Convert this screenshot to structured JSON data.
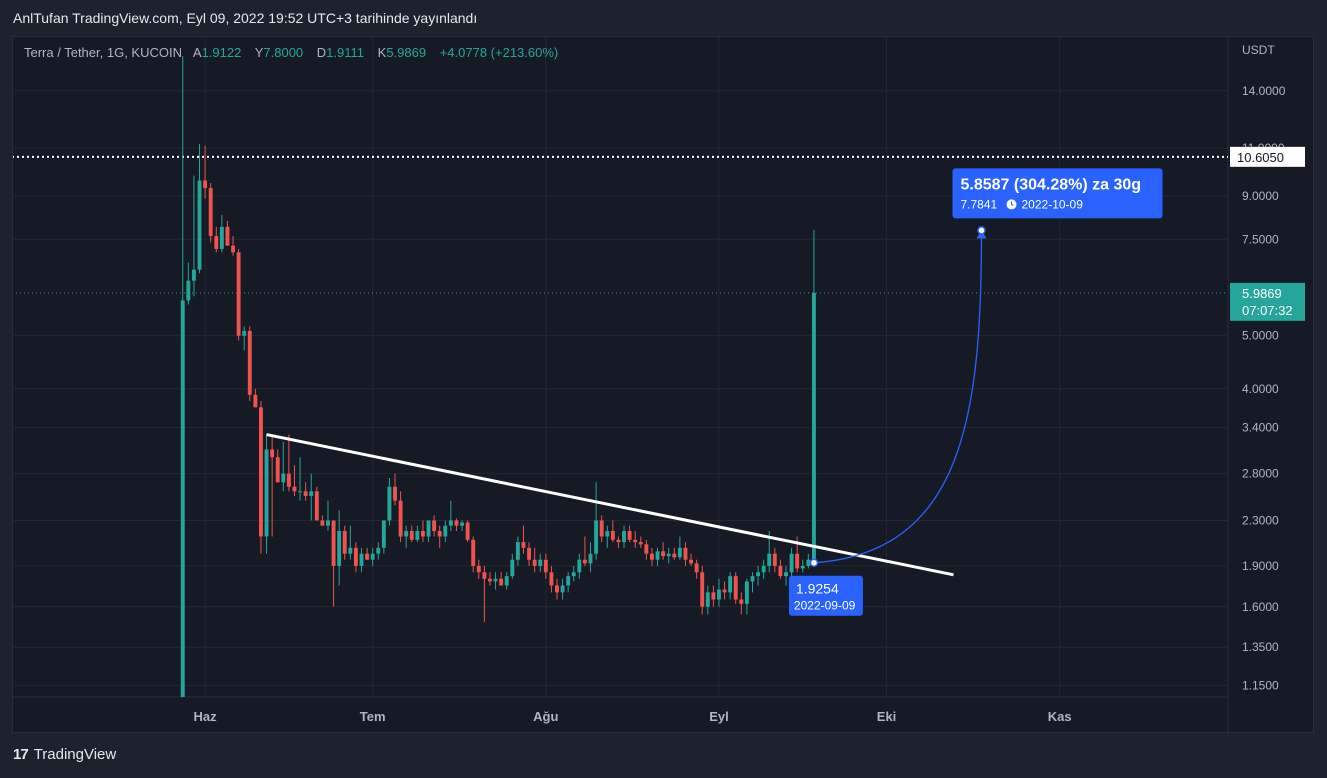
{
  "caption": "AnlTufan TradingView.com, Eyl 09, 2022 19:52 UTC+3 tarihinde yayınlandı",
  "legend": {
    "symbol": "Terra / Tether, 1G, KUCOIN",
    "o_label": "A",
    "o_value": "1.9122",
    "h_label": "Y",
    "h_value": "7.8000",
    "l_label": "D",
    "l_value": "1.9111",
    "c_label": "K",
    "c_value": "5.9869",
    "change": "+4.0778 (+213.60%)"
  },
  "currency": "USDT",
  "brand": {
    "logo": "17",
    "name": "TradingView"
  },
  "colors": {
    "up": "#26a69a",
    "down": "#ef5350",
    "accent": "#2962ff",
    "grid": "#232733",
    "text": "#b2b5be"
  },
  "chart_data": {
    "type": "candlestick",
    "scale": "log",
    "ylim": [
      1.05,
      16.0
    ],
    "y_ticks": [
      "14.0000",
      "9.0000",
      "7.5000",
      "5.0000",
      "4.0000",
      "3.4000",
      "2.8000",
      "2.3000",
      "1.9000",
      "1.6000",
      "1.3500",
      "1.1500"
    ],
    "hidden_tick": "11.0000",
    "x_axis": {
      "start": "2022-05-25",
      "end": "2022-11-22",
      "month_ticks": [
        {
          "label": "Haz",
          "date": "2022-06-01"
        },
        {
          "label": "Tem",
          "date": "2022-07-01"
        },
        {
          "label": "Ağu",
          "date": "2022-08-01"
        },
        {
          "label": "Eyl",
          "date": "2022-09-01"
        },
        {
          "label": "Eki",
          "date": "2022-10-01"
        },
        {
          "label": "Kas",
          "date": "2022-11-01"
        }
      ]
    },
    "candles": [
      {
        "d": "2022-05-28",
        "o": 1.08,
        "h": 16.2,
        "l": 1.07,
        "c": 5.8
      },
      {
        "d": "2022-05-29",
        "o": 5.8,
        "h": 6.8,
        "l": 5.7,
        "c": 6.3
      },
      {
        "d": "2022-05-30",
        "o": 6.3,
        "h": 9.8,
        "l": 5.9,
        "c": 6.6
      },
      {
        "d": "2022-05-31",
        "o": 6.6,
        "h": 11.2,
        "l": 6.5,
        "c": 9.6
      },
      {
        "d": "2022-06-01",
        "o": 9.6,
        "h": 11.1,
        "l": 8.9,
        "c": 9.3
      },
      {
        "d": "2022-06-02",
        "o": 9.3,
        "h": 9.5,
        "l": 7.4,
        "c": 7.6
      },
      {
        "d": "2022-06-03",
        "o": 7.6,
        "h": 7.9,
        "l": 7.1,
        "c": 7.2
      },
      {
        "d": "2022-06-04",
        "o": 7.2,
        "h": 8.3,
        "l": 7.1,
        "c": 7.9
      },
      {
        "d": "2022-06-05",
        "o": 7.9,
        "h": 8.1,
        "l": 7.3,
        "c": 7.3
      },
      {
        "d": "2022-06-06",
        "o": 7.3,
        "h": 7.6,
        "l": 7.0,
        "c": 7.1
      },
      {
        "d": "2022-06-07",
        "o": 7.1,
        "h": 7.2,
        "l": 4.9,
        "c": 5.0
      },
      {
        "d": "2022-06-08",
        "o": 5.0,
        "h": 5.2,
        "l": 4.7,
        "c": 5.1
      },
      {
        "d": "2022-06-09",
        "o": 5.1,
        "h": 5.2,
        "l": 3.8,
        "c": 3.9
      },
      {
        "d": "2022-06-10",
        "o": 3.9,
        "h": 4.0,
        "l": 3.7,
        "c": 3.7
      },
      {
        "d": "2022-06-11",
        "o": 3.7,
        "h": 3.8,
        "l": 2.0,
        "c": 2.15
      },
      {
        "d": "2022-06-12",
        "o": 2.15,
        "h": 3.3,
        "l": 2.0,
        "c": 3.1
      },
      {
        "d": "2022-06-13",
        "o": 3.1,
        "h": 3.3,
        "l": 2.15,
        "c": 3.0
      },
      {
        "d": "2022-06-14",
        "o": 3.0,
        "h": 3.1,
        "l": 2.7,
        "c": 2.7
      },
      {
        "d": "2022-06-15",
        "o": 2.7,
        "h": 3.2,
        "l": 2.6,
        "c": 2.8
      },
      {
        "d": "2022-06-16",
        "o": 2.8,
        "h": 3.3,
        "l": 2.6,
        "c": 2.65
      },
      {
        "d": "2022-06-17",
        "o": 2.65,
        "h": 2.9,
        "l": 2.55,
        "c": 2.6
      },
      {
        "d": "2022-06-18",
        "o": 2.6,
        "h": 3.0,
        "l": 2.5,
        "c": 2.6
      },
      {
        "d": "2022-06-19",
        "o": 2.6,
        "h": 2.7,
        "l": 2.5,
        "c": 2.55
      },
      {
        "d": "2022-06-20",
        "o": 2.55,
        "h": 2.8,
        "l": 2.3,
        "c": 2.6
      },
      {
        "d": "2022-06-21",
        "o": 2.6,
        "h": 2.65,
        "l": 2.3,
        "c": 2.3
      },
      {
        "d": "2022-06-22",
        "o": 2.3,
        "h": 2.35,
        "l": 2.25,
        "c": 2.25
      },
      {
        "d": "2022-06-23",
        "o": 2.25,
        "h": 2.5,
        "l": 2.2,
        "c": 2.3
      },
      {
        "d": "2022-06-24",
        "o": 2.3,
        "h": 2.3,
        "l": 1.6,
        "c": 1.9
      },
      {
        "d": "2022-06-25",
        "o": 1.9,
        "h": 2.4,
        "l": 1.75,
        "c": 2.2
      },
      {
        "d": "2022-06-26",
        "o": 2.2,
        "h": 2.25,
        "l": 1.95,
        "c": 2.0
      },
      {
        "d": "2022-06-27",
        "o": 2.0,
        "h": 2.25,
        "l": 1.95,
        "c": 2.05
      },
      {
        "d": "2022-06-28",
        "o": 2.05,
        "h": 2.1,
        "l": 1.85,
        "c": 1.9
      },
      {
        "d": "2022-06-29",
        "o": 1.9,
        "h": 2.05,
        "l": 1.85,
        "c": 2.0
      },
      {
        "d": "2022-06-30",
        "o": 2.0,
        "h": 2.05,
        "l": 1.95,
        "c": 1.95
      },
      {
        "d": "2022-07-01",
        "o": 1.95,
        "h": 2.05,
        "l": 1.9,
        "c": 2.0
      },
      {
        "d": "2022-07-02",
        "o": 2.0,
        "h": 2.1,
        "l": 1.95,
        "c": 2.05
      },
      {
        "d": "2022-07-03",
        "o": 2.05,
        "h": 2.3,
        "l": 2.0,
        "c": 2.3
      },
      {
        "d": "2022-07-04",
        "o": 2.3,
        "h": 2.75,
        "l": 2.25,
        "c": 2.65
      },
      {
        "d": "2022-07-05",
        "o": 2.65,
        "h": 2.8,
        "l": 2.45,
        "c": 2.5
      },
      {
        "d": "2022-07-06",
        "o": 2.5,
        "h": 2.6,
        "l": 2.1,
        "c": 2.15
      },
      {
        "d": "2022-07-07",
        "o": 2.15,
        "h": 2.25,
        "l": 2.05,
        "c": 2.2
      },
      {
        "d": "2022-07-08",
        "o": 2.2,
        "h": 2.25,
        "l": 2.1,
        "c": 2.12
      },
      {
        "d": "2022-07-09",
        "o": 2.12,
        "h": 2.25,
        "l": 2.1,
        "c": 2.2
      },
      {
        "d": "2022-07-10",
        "o": 2.2,
        "h": 2.3,
        "l": 2.1,
        "c": 2.15
      },
      {
        "d": "2022-07-11",
        "o": 2.15,
        "h": 2.3,
        "l": 2.1,
        "c": 2.3
      },
      {
        "d": "2022-07-12",
        "o": 2.3,
        "h": 2.35,
        "l": 2.15,
        "c": 2.2
      },
      {
        "d": "2022-07-13",
        "o": 2.2,
        "h": 2.25,
        "l": 2.05,
        "c": 2.15
      },
      {
        "d": "2022-07-14",
        "o": 2.15,
        "h": 2.3,
        "l": 2.1,
        "c": 2.25
      },
      {
        "d": "2022-07-15",
        "o": 2.25,
        "h": 2.5,
        "l": 2.2,
        "c": 2.3
      },
      {
        "d": "2022-07-16",
        "o": 2.3,
        "h": 2.32,
        "l": 2.2,
        "c": 2.25
      },
      {
        "d": "2022-07-17",
        "o": 2.25,
        "h": 2.3,
        "l": 2.2,
        "c": 2.28
      },
      {
        "d": "2022-07-18",
        "o": 2.28,
        "h": 2.3,
        "l": 2.1,
        "c": 2.12
      },
      {
        "d": "2022-07-19",
        "o": 2.12,
        "h": 2.15,
        "l": 1.85,
        "c": 1.9
      },
      {
        "d": "2022-07-20",
        "o": 1.9,
        "h": 1.95,
        "l": 1.8,
        "c": 1.85
      },
      {
        "d": "2022-07-21",
        "o": 1.85,
        "h": 1.9,
        "l": 1.5,
        "c": 1.8
      },
      {
        "d": "2022-07-22",
        "o": 1.8,
        "h": 1.85,
        "l": 1.75,
        "c": 1.78
      },
      {
        "d": "2022-07-23",
        "o": 1.78,
        "h": 1.85,
        "l": 1.72,
        "c": 1.8
      },
      {
        "d": "2022-07-24",
        "o": 1.8,
        "h": 1.85,
        "l": 1.75,
        "c": 1.75
      },
      {
        "d": "2022-07-25",
        "o": 1.75,
        "h": 1.85,
        "l": 1.72,
        "c": 1.82
      },
      {
        "d": "2022-07-26",
        "o": 1.82,
        "h": 2.0,
        "l": 1.8,
        "c": 1.95
      },
      {
        "d": "2022-07-27",
        "o": 1.95,
        "h": 2.15,
        "l": 1.9,
        "c": 2.1
      },
      {
        "d": "2022-07-28",
        "o": 2.1,
        "h": 2.25,
        "l": 2.0,
        "c": 2.05
      },
      {
        "d": "2022-07-29",
        "o": 2.05,
        "h": 2.1,
        "l": 1.9,
        "c": 1.95
      },
      {
        "d": "2022-07-30",
        "o": 1.95,
        "h": 2.05,
        "l": 1.85,
        "c": 1.9
      },
      {
        "d": "2022-07-31",
        "o": 1.9,
        "h": 2.0,
        "l": 1.85,
        "c": 1.95
      },
      {
        "d": "2022-08-01",
        "o": 1.95,
        "h": 2.0,
        "l": 1.8,
        "c": 1.85
      },
      {
        "d": "2022-08-02",
        "o": 1.85,
        "h": 1.9,
        "l": 1.7,
        "c": 1.75
      },
      {
        "d": "2022-08-03",
        "o": 1.75,
        "h": 1.8,
        "l": 1.65,
        "c": 1.7
      },
      {
        "d": "2022-08-04",
        "o": 1.7,
        "h": 1.8,
        "l": 1.65,
        "c": 1.75
      },
      {
        "d": "2022-08-05",
        "o": 1.75,
        "h": 1.85,
        "l": 1.7,
        "c": 1.82
      },
      {
        "d": "2022-08-06",
        "o": 1.82,
        "h": 1.9,
        "l": 1.78,
        "c": 1.85
      },
      {
        "d": "2022-08-07",
        "o": 1.85,
        "h": 2.0,
        "l": 1.8,
        "c": 1.95
      },
      {
        "d": "2022-08-08",
        "o": 1.95,
        "h": 2.15,
        "l": 1.9,
        "c": 1.92
      },
      {
        "d": "2022-08-09",
        "o": 1.92,
        "h": 2.1,
        "l": 1.85,
        "c": 2.0
      },
      {
        "d": "2022-08-10",
        "o": 2.0,
        "h": 2.7,
        "l": 1.95,
        "c": 2.3
      },
      {
        "d": "2022-08-11",
        "o": 2.3,
        "h": 2.35,
        "l": 2.1,
        "c": 2.15
      },
      {
        "d": "2022-08-12",
        "o": 2.15,
        "h": 2.25,
        "l": 2.05,
        "c": 2.2
      },
      {
        "d": "2022-08-13",
        "o": 2.2,
        "h": 2.3,
        "l": 2.1,
        "c": 2.12
      },
      {
        "d": "2022-08-14",
        "o": 2.12,
        "h": 2.15,
        "l": 2.05,
        "c": 2.1
      },
      {
        "d": "2022-08-15",
        "o": 2.1,
        "h": 2.25,
        "l": 2.05,
        "c": 2.2
      },
      {
        "d": "2022-08-16",
        "o": 2.2,
        "h": 2.25,
        "l": 2.1,
        "c": 2.12
      },
      {
        "d": "2022-08-17",
        "o": 2.12,
        "h": 2.2,
        "l": 2.05,
        "c": 2.1
      },
      {
        "d": "2022-08-18",
        "o": 2.1,
        "h": 2.15,
        "l": 2.05,
        "c": 2.08
      },
      {
        "d": "2022-08-19",
        "o": 2.08,
        "h": 2.12,
        "l": 1.95,
        "c": 2.0
      },
      {
        "d": "2022-08-20",
        "o": 2.0,
        "h": 2.05,
        "l": 1.9,
        "c": 1.95
      },
      {
        "d": "2022-08-21",
        "o": 1.95,
        "h": 2.05,
        "l": 1.9,
        "c": 2.02
      },
      {
        "d": "2022-08-22",
        "o": 2.02,
        "h": 2.1,
        "l": 1.95,
        "c": 1.98
      },
      {
        "d": "2022-08-23",
        "o": 1.98,
        "h": 2.05,
        "l": 1.92,
        "c": 2.0
      },
      {
        "d": "2022-08-24",
        "o": 2.0,
        "h": 2.05,
        "l": 1.95,
        "c": 1.97
      },
      {
        "d": "2022-08-25",
        "o": 1.97,
        "h": 2.15,
        "l": 1.95,
        "c": 2.05
      },
      {
        "d": "2022-08-26",
        "o": 2.05,
        "h": 2.1,
        "l": 1.9,
        "c": 1.95
      },
      {
        "d": "2022-08-27",
        "o": 1.95,
        "h": 2.0,
        "l": 1.9,
        "c": 1.92
      },
      {
        "d": "2022-08-28",
        "o": 1.92,
        "h": 1.95,
        "l": 1.8,
        "c": 1.85
      },
      {
        "d": "2022-08-29",
        "o": 1.85,
        "h": 1.9,
        "l": 1.55,
        "c": 1.6
      },
      {
        "d": "2022-08-30",
        "o": 1.6,
        "h": 1.75,
        "l": 1.55,
        "c": 1.7
      },
      {
        "d": "2022-08-31",
        "o": 1.7,
        "h": 1.75,
        "l": 1.6,
        "c": 1.65
      },
      {
        "d": "2022-09-01",
        "o": 1.65,
        "h": 1.8,
        "l": 1.6,
        "c": 1.72
      },
      {
        "d": "2022-09-02",
        "o": 1.72,
        "h": 1.78,
        "l": 1.65,
        "c": 1.7
      },
      {
        "d": "2022-09-03",
        "o": 1.7,
        "h": 1.85,
        "l": 1.65,
        "c": 1.82
      },
      {
        "d": "2022-09-04",
        "o": 1.82,
        "h": 1.85,
        "l": 1.62,
        "c": 1.65
      },
      {
        "d": "2022-09-05",
        "o": 1.65,
        "h": 1.7,
        "l": 1.55,
        "c": 1.62
      },
      {
        "d": "2022-09-06",
        "o": 1.62,
        "h": 1.8,
        "l": 1.55,
        "c": 1.78
      },
      {
        "d": "2022-09-07",
        "o": 1.78,
        "h": 1.85,
        "l": 1.7,
        "c": 1.82
      },
      {
        "d": "2022-09-08",
        "o": 1.82,
        "h": 1.9,
        "l": 1.75,
        "c": 1.85
      },
      {
        "d": "2022-09-09",
        "o": 1.85,
        "h": 1.95,
        "l": 1.8,
        "c": 1.9
      },
      {
        "d": "2022-09-10",
        "o": 1.9,
        "h": 2.2,
        "l": 1.85,
        "c": 2.0
      },
      {
        "d": "2022-09-11",
        "o": 2.0,
        "h": 2.05,
        "l": 1.85,
        "c": 1.9
      },
      {
        "d": "2022-09-12",
        "o": 1.9,
        "h": 1.95,
        "l": 1.8,
        "c": 1.82
      },
      {
        "d": "2022-09-13",
        "o": 1.82,
        "h": 1.9,
        "l": 1.75,
        "c": 1.85
      },
      {
        "d": "2022-09-14",
        "o": 1.85,
        "h": 2.05,
        "l": 1.8,
        "c": 2.0
      },
      {
        "d": "2022-09-15",
        "o": 2.0,
        "h": 2.15,
        "l": 1.85,
        "c": 1.88
      },
      {
        "d": "2022-09-16",
        "o": 1.88,
        "h": 1.95,
        "l": 1.85,
        "c": 1.9
      },
      {
        "d": "2022-09-17",
        "o": 1.9,
        "h": 2.0,
        "l": 1.88,
        "c": 1.95
      },
      {
        "d": "2022-09-18",
        "o": 1.9122,
        "h": 7.8,
        "l": 1.9111,
        "c": 5.9869
      }
    ]
  },
  "annotations": {
    "trendline": {
      "from_date": "2022-06-12",
      "from_price": 3.3,
      "to_date": "2022-10-13",
      "to_price": 1.83
    },
    "price_line": {
      "value": 10.605,
      "label": "10.6050"
    },
    "current_price": {
      "value": 5.9869,
      "label": "5.9869",
      "countdown": "07:07:32"
    },
    "projection_start": {
      "date": "2022-09-18",
      "price": 1.9254,
      "label": "1.9254",
      "date_label": "2022-09-09"
    },
    "projection_end": {
      "date": "2022-10-18",
      "price": 7.7841
    },
    "projection_box": {
      "title": "5.8587 (304.28%) za 30g",
      "value": "7.7841",
      "date": "2022-10-09"
    }
  }
}
